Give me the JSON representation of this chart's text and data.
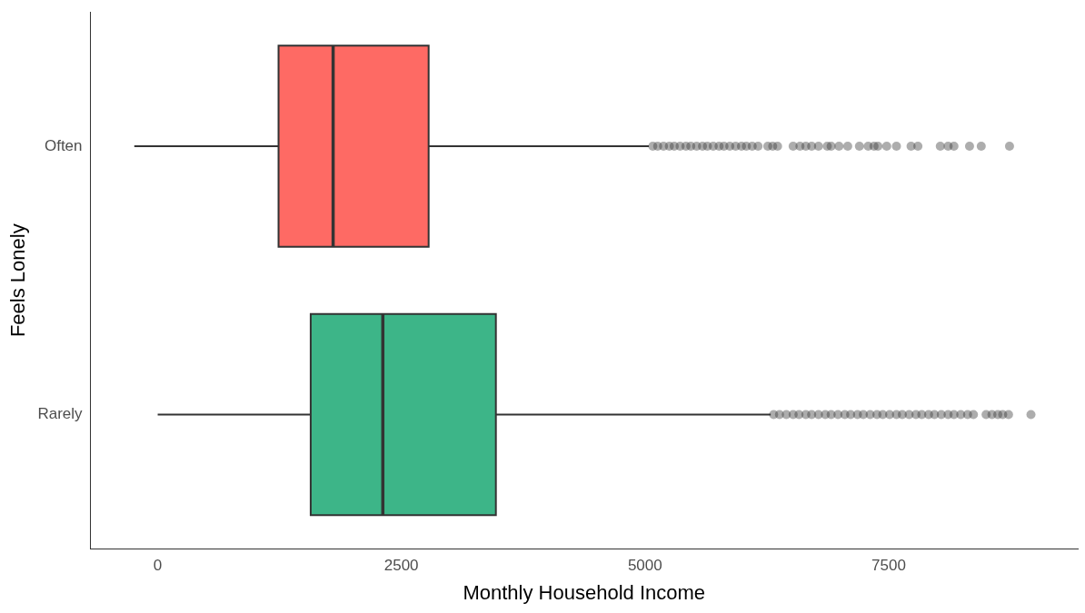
{
  "chart_data": {
    "type": "box",
    "orientation": "horizontal",
    "xlabel": "Monthly Household Income",
    "ylabel": "Feels Lonely",
    "categories": [
      "Often",
      "Rarely"
    ],
    "colors": [
      "#fe6a64",
      "#3db588"
    ],
    "boxes": [
      {
        "low": -240,
        "q1": 1240,
        "median": 1800,
        "q3": 2780,
        "high": 5040,
        "outliers": [
          5080,
          5130,
          5190,
          5250,
          5300,
          5360,
          5420,
          5470,
          5530,
          5590,
          5640,
          5700,
          5760,
          5810,
          5870,
          5930,
          5990,
          6040,
          6100,
          6160,
          6260,
          6310,
          6360,
          6520,
          6590,
          6650,
          6710,
          6780,
          6870,
          6910,
          6990,
          7080,
          7200,
          7290,
          7350,
          7390,
          7480,
          7580,
          7730,
          7800,
          8030,
          8110,
          8170,
          8330,
          8450,
          8740
        ]
      },
      {
        "low": 0,
        "q1": 1570,
        "median": 2310,
        "q3": 3470,
        "high": 6290,
        "outliers": [
          6320,
          6380,
          6450,
          6520,
          6580,
          6650,
          6710,
          6780,
          6850,
          6910,
          6980,
          7050,
          7110,
          7180,
          7240,
          7310,
          7380,
          7440,
          7510,
          7580,
          7640,
          7710,
          7780,
          7840,
          7910,
          7970,
          8040,
          8110,
          8170,
          8240,
          8310,
          8370,
          8500,
          8560,
          8620,
          8670,
          8730,
          8960
        ]
      }
    ],
    "xlim": [
      -690,
      9440
    ],
    "xticks": [
      0,
      2500,
      5000,
      7500
    ],
    "grid": false,
    "legend": false
  }
}
